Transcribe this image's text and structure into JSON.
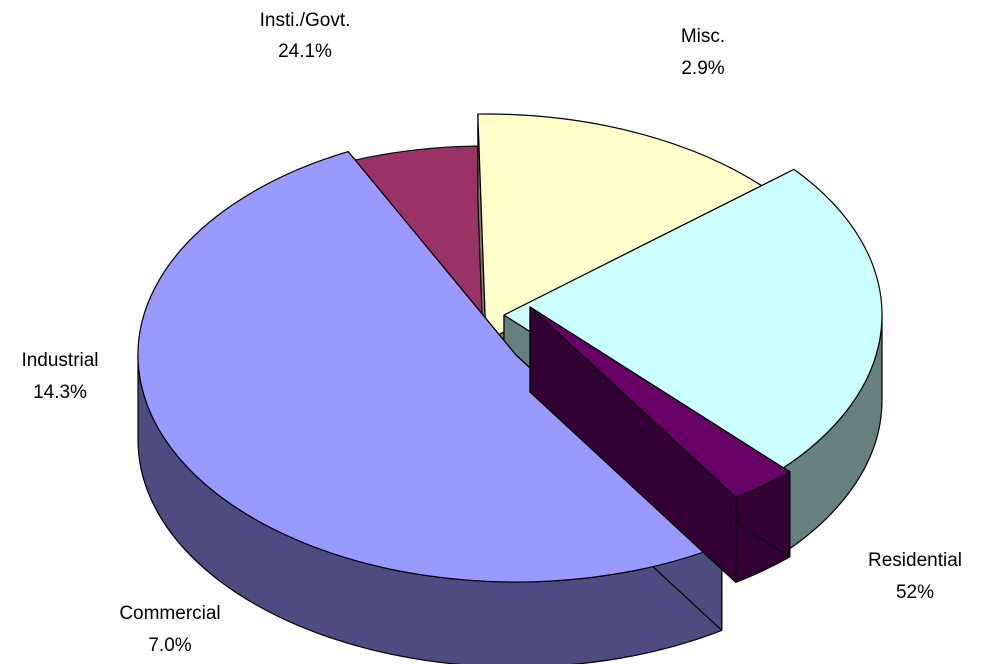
{
  "chart_data": {
    "type": "pie",
    "style": "3d-exploded",
    "title": "",
    "slices": [
      {
        "label": "Residential",
        "display": "52%",
        "value": 52.0,
        "top_color": "#9999ff",
        "side_color": "#4c4c80"
      },
      {
        "label": "Commercial",
        "display": "7.0%",
        "value": 7.0,
        "top_color": "#993366",
        "side_color": "#4d1a33"
      },
      {
        "label": "Industrial",
        "display": "14.3%",
        "value": 14.3,
        "top_color": "#ffffcc",
        "side_color": "#808066"
      },
      {
        "label": "Insti./Govt.",
        "display": "24.1%",
        "value": 24.1,
        "top_color": "#ccffff",
        "side_color": "#668080"
      },
      {
        "label": "Misc.",
        "display": "2.9%",
        "value": 2.9,
        "top_color": "#660066",
        "side_color": "#330033"
      }
    ],
    "legend": "none",
    "grid": false
  }
}
